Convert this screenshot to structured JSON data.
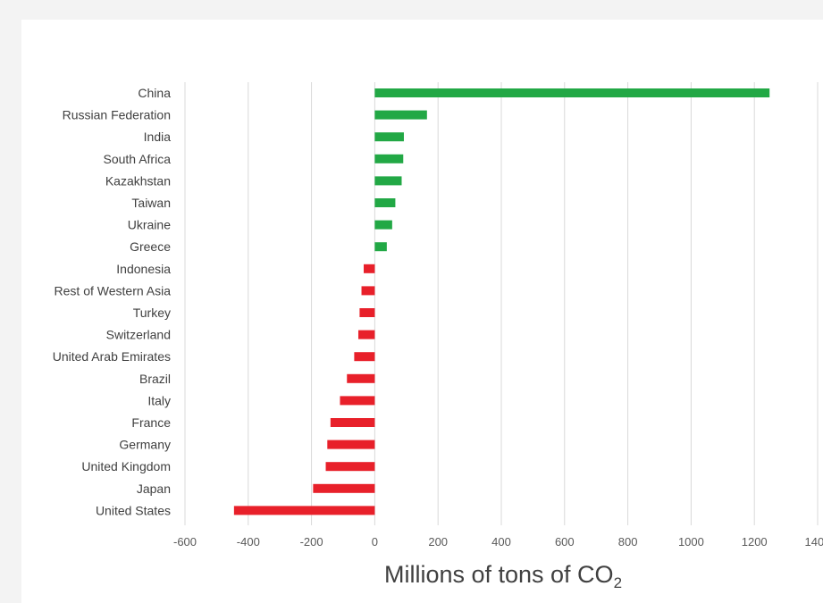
{
  "chart_data": {
    "type": "bar",
    "orientation": "horizontal",
    "categories": [
      "China",
      "Russian Federation",
      "India",
      "South Africa",
      "Kazakhstan",
      "Taiwan",
      "Ukraine",
      "Greece",
      "Indonesia",
      "Rest of Western Asia",
      "Turkey",
      "Switzerland",
      "United Arab Emirates",
      "Brazil",
      "Italy",
      "France",
      "Germany",
      "United Kingdom",
      "Japan",
      "United States"
    ],
    "values": [
      1248,
      165,
      92,
      90,
      85,
      65,
      55,
      38,
      -35,
      -42,
      -48,
      -52,
      -65,
      -88,
      -110,
      -140,
      -150,
      -155,
      -195,
      -445
    ],
    "xlim": [
      -600,
      1400
    ],
    "xticks": [
      "-600",
      "-400",
      "-200",
      "0",
      "200",
      "400",
      "600",
      "800",
      "1000",
      "1200",
      "1400"
    ],
    "xlabel_main": "Millions of tons of CO",
    "xlabel_sub": "2",
    "grid": true,
    "colors": {
      "positive": "#22a845",
      "negative": "#e8202a"
    }
  }
}
